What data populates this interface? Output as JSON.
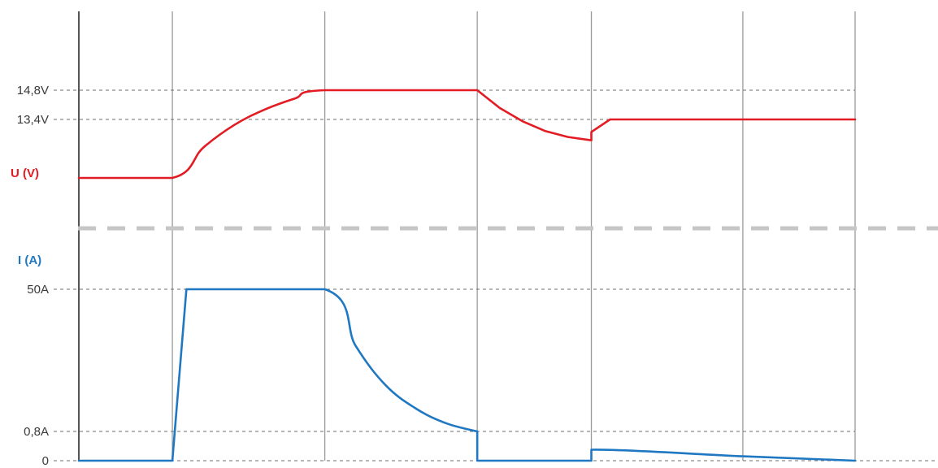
{
  "chart_data": {
    "type": "line",
    "colors": {
      "voltage": "#e31b23",
      "current": "#1f78c1",
      "stage_lines": "#9a9a9a",
      "reference_lines": "#6e6e6e",
      "separator": "#c6c6c6"
    },
    "grid": false,
    "stage_boundaries": [
      0,
      1,
      2.63,
      4.26,
      5.48,
      7.1,
      8.3
    ],
    "voltage_panel": {
      "ylabel": "U (V)",
      "reference_ticks": [
        {
          "value": 14.8,
          "label": "14,8V"
        },
        {
          "value": 13.4,
          "label": "13,4V"
        }
      ],
      "series": [
        {
          "values": [
            {
              "x": 0,
              "y": 10.6
            },
            {
              "x": 1,
              "y": 10.6
            },
            {
              "x": 1.33,
              "y": 12.05
            },
            {
              "x": 1.66,
              "y": 13.13
            },
            {
              "x": 1.98,
              "y": 13.86
            },
            {
              "x": 2.31,
              "y": 14.4
            },
            {
              "x": 2.63,
              "y": 14.8
            },
            {
              "x": 4.26,
              "y": 14.8
            },
            {
              "x": 4.5,
              "y": 13.95
            },
            {
              "x": 4.75,
              "y": 13.3
            },
            {
              "x": 4.99,
              "y": 12.84
            },
            {
              "x": 5.23,
              "y": 12.56
            },
            {
              "x": 5.48,
              "y": 12.4
            },
            {
              "x": 5.48,
              "y": 12.8
            },
            {
              "x": 5.68,
              "y": 13.4
            },
            {
              "x": 8.3,
              "y": 13.4
            }
          ]
        }
      ]
    },
    "current_panel": {
      "ylabel": "I (A)",
      "reference_ticks": [
        {
          "value": 50,
          "label": "50A"
        },
        {
          "value": 0.8,
          "label": "0,8A"
        },
        {
          "value": 0,
          "label": "0"
        }
      ],
      "series": [
        {
          "values": [
            {
              "x": 0,
              "y": 0
            },
            {
              "x": 1,
              "y": 0
            },
            {
              "x": 1.15,
              "y": 50
            },
            {
              "x": 2.63,
              "y": 50
            },
            {
              "x": 2.96,
              "y": 30.4
            },
            {
              "x": 3.28,
              "y": 16.8
            },
            {
              "x": 3.61,
              "y": 8.6
            },
            {
              "x": 3.93,
              "y": 3.6
            },
            {
              "x": 4.26,
              "y": 0.8
            },
            {
              "x": 4.26,
              "y": 0
            },
            {
              "x": 5.48,
              "y": 0
            },
            {
              "x": 5.48,
              "y": 0.3
            },
            {
              "x": 7.1,
              "y": 0.12
            },
            {
              "x": 8.3,
              "y": 0
            }
          ]
        }
      ]
    }
  }
}
